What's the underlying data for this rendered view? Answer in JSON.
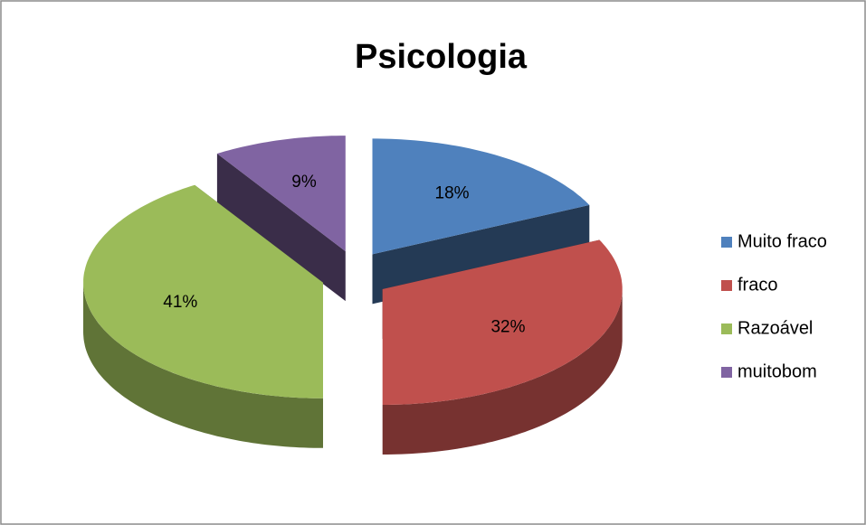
{
  "chart_data": {
    "type": "pie",
    "title": "Psicologia",
    "categories": [
      "Muito fraco",
      "fraco",
      "Razoável",
      "muitobom"
    ],
    "values": [
      18,
      32,
      41,
      9
    ],
    "value_labels": [
      "18%",
      "32%",
      "41%",
      "9%"
    ],
    "colors": [
      "#4f81bd",
      "#c0504d",
      "#9bbb59",
      "#8064a2"
    ],
    "legend": "right"
  }
}
